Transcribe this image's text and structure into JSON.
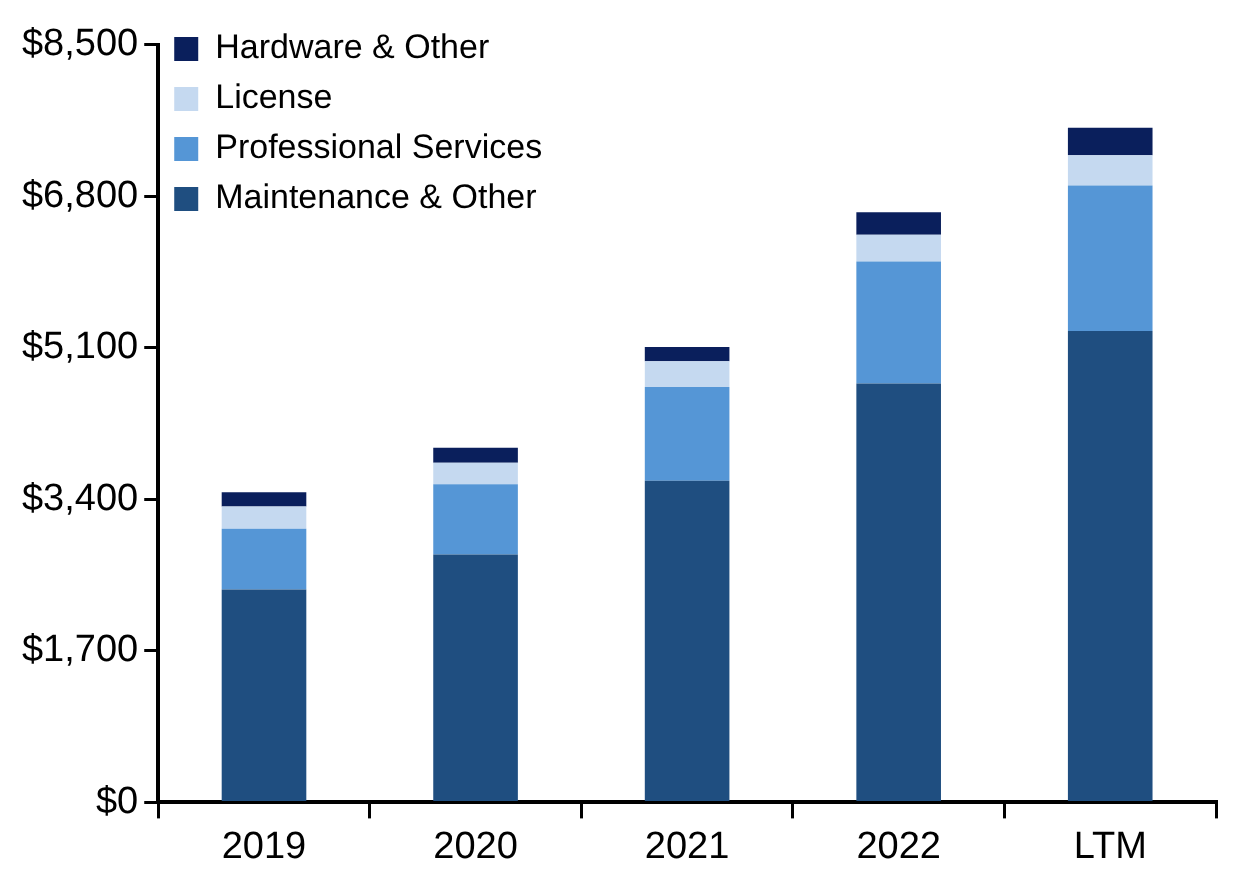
{
  "chart_data": {
    "type": "bar",
    "stacked": true,
    "categories": [
      "2019",
      "2020",
      "2021",
      "2022",
      "LTM"
    ],
    "series": [
      {
        "name": "Maintenance & Other",
        "color": "#1f4e80",
        "values": [
          2390,
          2780,
          3610,
          4700,
          5290
        ]
      },
      {
        "name": "Professional Services",
        "color": "#5596d6",
        "values": [
          680,
          790,
          1050,
          1370,
          1630
        ]
      },
      {
        "name": "License",
        "color": "#c5d9f0",
        "values": [
          250,
          240,
          290,
          300,
          340
        ]
      },
      {
        "name": "Hardware & Other",
        "color": "#0a1f5c",
        "values": [
          160,
          170,
          160,
          250,
          310
        ]
      }
    ],
    "ylim": [
      0,
      8500
    ],
    "yticks": [
      {
        "value": 0,
        "label": "$0"
      },
      {
        "value": 1700,
        "label": "$1,700"
      },
      {
        "value": 3400,
        "label": "$3,400"
      },
      {
        "value": 5100,
        "label": "$5,100"
      },
      {
        "value": 6800,
        "label": "$6,800"
      },
      {
        "value": 8500,
        "label": "$8,500"
      }
    ],
    "grid": false,
    "legend": "top left"
  }
}
